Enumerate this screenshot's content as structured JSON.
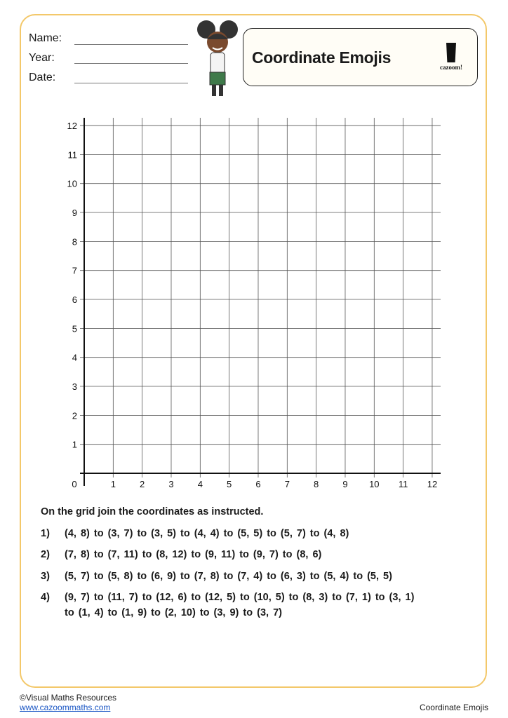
{
  "form": {
    "name_label": "Name:",
    "year_label": "Year:",
    "date_label": "Date:"
  },
  "title": "Coordinate Emojis",
  "logo_text": "cazoom!",
  "grid": {
    "x_ticks": [
      "0",
      "1",
      "2",
      "3",
      "4",
      "5",
      "6",
      "7",
      "8",
      "9",
      "10",
      "11",
      "12"
    ],
    "y_ticks": [
      "1",
      "2",
      "3",
      "4",
      "5",
      "6",
      "7",
      "8",
      "9",
      "10",
      "11",
      "12"
    ],
    "xlim": [
      0,
      12
    ],
    "ylim": [
      0,
      12
    ]
  },
  "instructions": "On the grid join the coordinates as instructed.",
  "questions": [
    {
      "num": "1)",
      "text": "(4, 8) to (3, 7) to (3, 5) to (4, 4) to (5, 5) to (5, 7) to (4, 8)"
    },
    {
      "num": "2)",
      "text": "(7, 8) to (7, 11) to (8, 12) to (9, 11) to (9, 7) to (8, 6)"
    },
    {
      "num": "3)",
      "text": "(5, 7) to (5, 8) to (6, 9) to (7, 8) to (7, 4) to (6, 3) to (5, 4) to (5, 5)"
    },
    {
      "num": "4)",
      "text": "(9, 7) to (11, 7) to (12, 6) to (12, 5) to (10, 5) to (8, 3) to (7, 1) to (3, 1)",
      "continuation": "to (1, 4) to (1, 9) to (2, 10) to (3, 9) to (3, 7)"
    }
  ],
  "footer": {
    "copyright": "©Visual Maths Resources",
    "url": "www.cazoommaths.com",
    "page_title": "Coordinate Emojis"
  },
  "colors": {
    "border": "#f3c86a",
    "link": "#1a56c4"
  }
}
